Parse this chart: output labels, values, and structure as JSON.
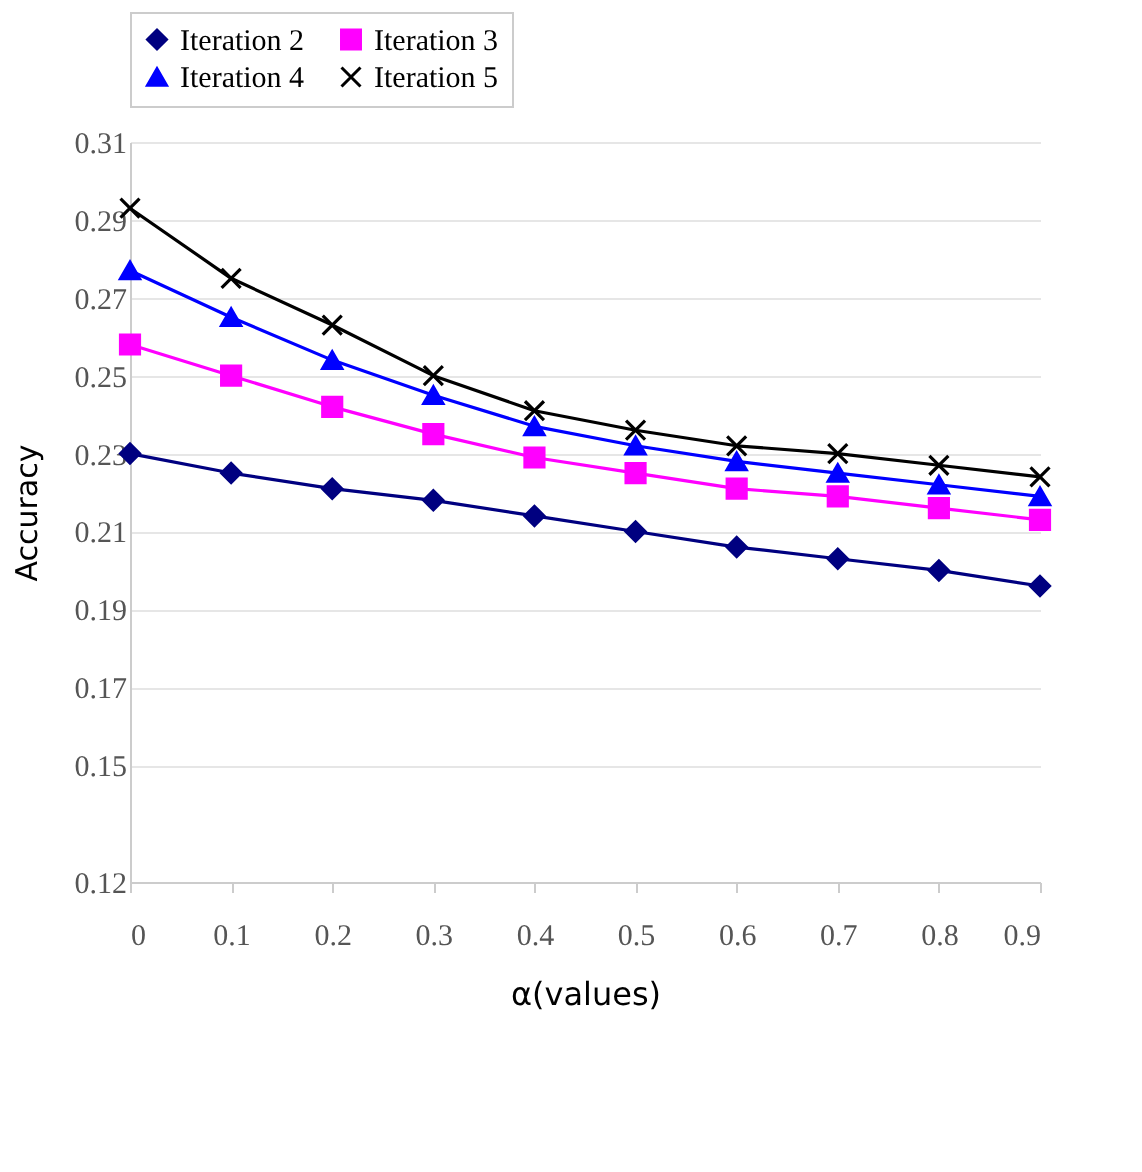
{
  "chart_data": {
    "type": "line",
    "xlabel": "α(values)",
    "ylabel": "Accuracy",
    "x": [
      0,
      0.1,
      0.2,
      0.3,
      0.4,
      0.5,
      0.6,
      0.7,
      0.8,
      0.9
    ],
    "series": [
      {
        "name": "Iteration 2",
        "color": "#000080",
        "marker": "diamond",
        "values": [
          0.23,
          0.225,
          0.221,
          0.218,
          0.214,
          0.21,
          0.206,
          0.203,
          0.2,
          0.196
        ]
      },
      {
        "name": "Iteration 3",
        "color": "#ff00ff",
        "marker": "square",
        "values": [
          0.258,
          0.25,
          0.242,
          0.235,
          0.229,
          0.225,
          0.221,
          0.219,
          0.216,
          0.213
        ]
      },
      {
        "name": "Iteration 4",
        "color": "#0000ff",
        "marker": "triangle",
        "values": [
          0.277,
          0.265,
          0.254,
          0.245,
          0.237,
          0.232,
          0.228,
          0.225,
          0.222,
          0.219
        ]
      },
      {
        "name": "Iteration 5",
        "color": "#000000",
        "marker": "cross",
        "values": [
          0.293,
          0.275,
          0.263,
          0.25,
          0.241,
          0.236,
          0.232,
          0.23,
          0.227,
          0.224
        ]
      }
    ],
    "xlim": [
      0,
      0.9
    ],
    "xticks": [
      0,
      0.1,
      0.2,
      0.3,
      0.4,
      0.5,
      0.6,
      0.7,
      0.8,
      0.9
    ],
    "ylim": [
      0.12,
      0.31
    ],
    "yticks": [
      0.12,
      0.15,
      0.17,
      0.19,
      0.21,
      0.23,
      0.25,
      0.27,
      0.29,
      0.31
    ],
    "grid": "y",
    "legend": "top",
    "line_style": "solid"
  }
}
